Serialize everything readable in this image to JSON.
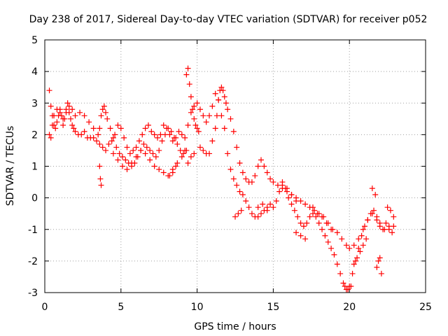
{
  "chart_data": {
    "type": "scatter",
    "title": "Day 238 of 2017, Sidereal Day-to-day VTEC variation (SDTVAR) for receiver p052",
    "xlabel": "GPS time / hours",
    "ylabel": "SDTVAR / TECUs",
    "xlim": [
      0,
      25
    ],
    "ylim": [
      -3,
      5
    ],
    "xticks": [
      0,
      5,
      10,
      15,
      20,
      25
    ],
    "yticks": [
      -3,
      -2,
      -1,
      0,
      1,
      2,
      3,
      4,
      5
    ],
    "xtick_labels": [
      "0",
      "5",
      "10",
      "15",
      "20",
      "25"
    ],
    "ytick_labels": [
      "-3",
      "-2",
      "-1",
      "0",
      "1",
      "2",
      "3",
      "4",
      "5"
    ],
    "grid": true,
    "marker": "+",
    "color": "#ff0000",
    "series": [
      {
        "name": "SDTVAR",
        "x": [
          0.3,
          0.4,
          0.5,
          0.6,
          0.7,
          0.8,
          0.9,
          1.0,
          1.1,
          1.2,
          1.3,
          1.4,
          1.5,
          1.6,
          1.7,
          1.8,
          1.9,
          2.0,
          2.2,
          2.4,
          2.6,
          2.8,
          3.0,
          3.2,
          3.4,
          3.6,
          3.8,
          4.0,
          4.2,
          4.4,
          4.6,
          4.8,
          5.0,
          5.2,
          5.4,
          5.6,
          5.8,
          6.0,
          6.2,
          6.4,
          6.6,
          6.8,
          7.0,
          7.2,
          7.4,
          7.6,
          7.8,
          8.0,
          8.2,
          8.4,
          8.6,
          8.8,
          9.0,
          9.2,
          9.4,
          9.6,
          9.8,
          10.0,
          10.2,
          10.4,
          10.6,
          10.8,
          11.0,
          11.2,
          11.4,
          11.6,
          11.8,
          12.0,
          12.2,
          12.4,
          12.6,
          12.8,
          13.0,
          13.2,
          13.4,
          13.6,
          13.8,
          14.0,
          14.2,
          14.4,
          14.6,
          14.8,
          15.0,
          15.2,
          15.4,
          15.6,
          15.8,
          16.0,
          16.2,
          16.4,
          16.6,
          16.8,
          17.0,
          17.2,
          17.4,
          17.6,
          17.8,
          18.0,
          18.2,
          18.4,
          18.6,
          18.8,
          19.0,
          19.2,
          19.4,
          19.6,
          19.8,
          20.0,
          20.2,
          20.4,
          20.6,
          20.8,
          21.0,
          21.2,
          21.4,
          21.6,
          21.8,
          22.0,
          22.2,
          22.4,
          22.6,
          22.8,
          0.3,
          0.4,
          0.5,
          0.6,
          0.8,
          1.0,
          1.2,
          1.4,
          1.6,
          1.8,
          2.0,
          2.3,
          2.6,
          2.9,
          3.2,
          3.5,
          3.6,
          3.7,
          3.8,
          3.9,
          4.0,
          4.1,
          4.3,
          4.5,
          4.7,
          4.9,
          5.1,
          5.3,
          5.5,
          5.7,
          5.9,
          6.1,
          6.3,
          6.5,
          6.7,
          6.9,
          7.1,
          7.3,
          7.5,
          7.7,
          7.9,
          8.1,
          8.3,
          8.5,
          8.7,
          8.9,
          9.1,
          9.2,
          9.3,
          9.4,
          9.5,
          9.6,
          9.7,
          9.8,
          9.9,
          10.0,
          10.1,
          10.2,
          10.4,
          10.6,
          10.8,
          11.0,
          11.2,
          11.3,
          11.4,
          11.5,
          11.6,
          11.7,
          11.8,
          11.9,
          12.0,
          12.2,
          12.4,
          12.6,
          12.8,
          13.0,
          13.2,
          13.4,
          13.6,
          13.8,
          14.0,
          14.2,
          14.4,
          14.6,
          14.8,
          15.0,
          15.3,
          15.6,
          15.9,
          16.2,
          16.5,
          16.8,
          17.1,
          17.4,
          17.7,
          18.0,
          18.3,
          18.6,
          18.9,
          19.2,
          19.5,
          19.8,
          20.0,
          20.3,
          20.6,
          20.9,
          21.2,
          21.5,
          21.8,
          22.0,
          22.3,
          22.6,
          22.9,
          3.6,
          3.65,
          3.7,
          8.2,
          8.4,
          8.6,
          9.4,
          9.6,
          9.8,
          12.5,
          12.7,
          12.9,
          14.0,
          14.3,
          14.6,
          16.5,
          16.8,
          17.1,
          19.7,
          19.9,
          20.1,
          21.8,
          21.9,
          22.0,
          22.1,
          21.5,
          21.7,
          22.5,
          22.7,
          22.9,
          20.3,
          20.5,
          20.7,
          20.9,
          21.1,
          15.6,
          15.9,
          16.2,
          16.5,
          17.6,
          17.9,
          18.2,
          18.5,
          18.8,
          4.5,
          4.8,
          5.1,
          5.4,
          5.7,
          6.0,
          6.3,
          6.6,
          6.9,
          7.2,
          7.5,
          7.8,
          8.1,
          8.4,
          8.7,
          9.0,
          9.3
        ],
        "y": [
          3.4,
          2.9,
          2.6,
          2.3,
          2.2,
          2.4,
          2.6,
          2.8,
          2.6,
          2.3,
          2.5,
          2.8,
          3.0,
          2.7,
          2.5,
          2.3,
          2.2,
          2.1,
          2.0,
          2.0,
          2.1,
          1.9,
          1.9,
          1.9,
          1.8,
          1.7,
          1.6,
          1.5,
          1.7,
          1.8,
          2.0,
          2.3,
          2.2,
          1.9,
          1.6,
          1.4,
          1.5,
          1.6,
          1.8,
          2.0,
          2.2,
          2.3,
          2.1,
          2.0,
          1.9,
          2.0,
          2.3,
          2.2,
          2.0,
          1.8,
          1.9,
          2.1,
          2.0,
          1.9,
          2.3,
          2.7,
          2.9,
          3.0,
          2.8,
          2.6,
          2.4,
          2.6,
          2.9,
          3.3,
          3.1,
          2.6,
          2.2,
          1.4,
          0.9,
          0.6,
          0.4,
          0.2,
          0.1,
          -0.1,
          -0.3,
          -0.5,
          -0.6,
          -0.6,
          -0.5,
          -0.4,
          -0.3,
          -0.2,
          -0.3,
          -0.1,
          0.2,
          0.4,
          0.3,
          0.0,
          -0.2,
          -0.4,
          -0.6,
          -0.8,
          -0.9,
          -0.8,
          -0.6,
          -0.5,
          -0.6,
          -0.8,
          -1.0,
          -1.2,
          -1.4,
          -1.6,
          -1.8,
          -2.1,
          -2.4,
          -2.7,
          -2.9,
          -2.8,
          -2.4,
          -2.0,
          -1.6,
          -1.2,
          -0.9,
          -0.7,
          -0.5,
          -0.4,
          -0.7,
          -0.9,
          -1.0,
          -0.8,
          -0.9,
          -1.1,
          2.0,
          1.9,
          2.3,
          2.6,
          2.8,
          2.7,
          2.5,
          2.7,
          2.9,
          2.8,
          2.6,
          2.7,
          2.6,
          2.4,
          2.2,
          2.0,
          2.2,
          2.6,
          2.8,
          2.9,
          2.7,
          2.5,
          2.2,
          1.9,
          1.6,
          1.4,
          1.3,
          1.2,
          1.1,
          1.0,
          1.1,
          1.3,
          1.5,
          1.7,
          1.6,
          1.5,
          1.4,
          1.3,
          1.5,
          1.8,
          2.0,
          2.2,
          2.1,
          1.9,
          1.7,
          1.5,
          1.4,
          1.5,
          3.9,
          4.1,
          3.6,
          3.2,
          2.8,
          2.5,
          2.3,
          2.2,
          2.1,
          1.6,
          1.5,
          1.4,
          1.4,
          1.8,
          2.2,
          2.6,
          3.1,
          3.4,
          3.5,
          3.4,
          3.2,
          3.0,
          2.8,
          2.5,
          2.1,
          1.6,
          1.1,
          0.8,
          0.6,
          0.5,
          0.5,
          0.7,
          1.0,
          1.2,
          1.0,
          0.8,
          0.6,
          0.5,
          0.4,
          0.3,
          0.2,
          0.1,
          0.0,
          -0.1,
          -0.2,
          -0.3,
          -0.4,
          -0.5,
          -0.6,
          -0.8,
          -1.0,
          -1.1,
          -1.3,
          -1.5,
          -1.6,
          -1.5,
          -1.3,
          -1.0,
          -0.7,
          -0.5,
          -0.6,
          -0.8,
          -1.0,
          -1.0,
          -0.9,
          1.0,
          0.6,
          0.4,
          0.7,
          0.8,
          1.0,
          1.1,
          1.3,
          1.4,
          -0.6,
          -0.5,
          -0.4,
          -0.3,
          -0.2,
          -0.4,
          -1.1,
          -1.2,
          -1.3,
          -2.8,
          -2.9,
          -2.8,
          -2.2,
          -2.0,
          -1.9,
          -2.4,
          0.3,
          0.1,
          -0.3,
          -0.4,
          -0.6,
          -2.1,
          -1.9,
          -1.7,
          -1.5,
          -1.3,
          0.5,
          0.3,
          0.1,
          -0.1,
          -0.3,
          -0.5,
          -0.6,
          -0.8,
          -1.0,
          1.4,
          1.2,
          1.0,
          0.9,
          1.1,
          1.3,
          1.5,
          1.4,
          1.2,
          1.0,
          0.9,
          0.8,
          0.7,
          0.9,
          1.1,
          1.3,
          1.5
        ]
      }
    ]
  }
}
